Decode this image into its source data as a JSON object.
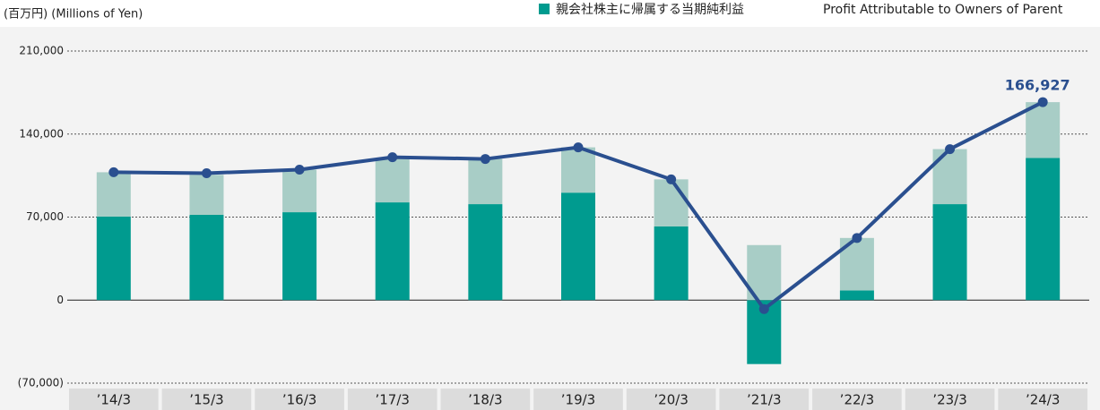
{
  "chart_data": {
    "type": "bar_line",
    "y_unit": "(百万円) (Millions of Yen)",
    "legend_en": "Profit Attributable to Owners of Parent",
    "categories": [
      "’14/3",
      "’15/3",
      "’16/3",
      "’17/3",
      "’18/3",
      "’19/3",
      "’20/3",
      "’21/3",
      "’22/3",
      "’23/3",
      "’24/3"
    ],
    "series": [
      {
        "name": "親会社株主に帰属する当期純利益",
        "type": "bar",
        "color": "#009b8f",
        "values": [
          70400,
          71900,
          74100,
          82400,
          80900,
          90600,
          62100,
          -53900,
          8200,
          80900,
          119800
        ]
      },
      {
        "type": "bar",
        "color": "#a8cdc6",
        "values": [
          37400,
          33700,
          35900,
          36600,
          38100,
          38200,
          39700,
          46400,
          44200,
          46400,
          47100
        ]
      },
      {
        "type": "line",
        "color": "#2a4f8f",
        "values": [
          107800,
          107000,
          110000,
          120500,
          119000,
          128800,
          101800,
          -7500,
          52400,
          127300,
          166927
        ],
        "value_labels": [
          null,
          null,
          null,
          null,
          null,
          null,
          null,
          null,
          null,
          null,
          "166,927"
        ]
      }
    ],
    "ylim": [
      -70000,
      210000
    ],
    "yticks": [
      {
        "value": -70000,
        "label": "(70,000)"
      },
      0,
      {
        "value": 70000,
        "label": "70,000"
      },
      {
        "value": 140000,
        "label": "140,000"
      },
      {
        "value": 210000,
        "label": "210,000"
      }
    ],
    "grid": true
  }
}
